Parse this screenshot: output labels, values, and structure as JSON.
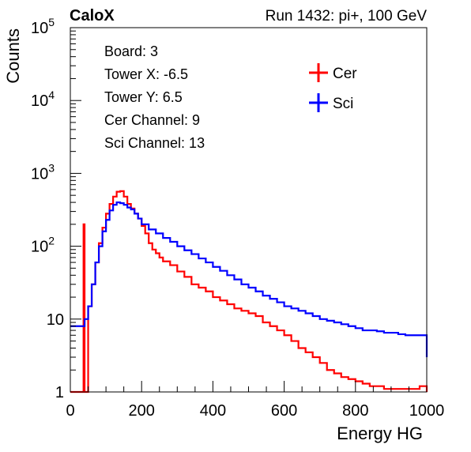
{
  "header": {
    "brand": "CaloX",
    "run_info": "Run 1432: pi+, 100 GeV"
  },
  "info_box": {
    "lines": [
      "Board: 3",
      "Tower X: -6.5",
      "Tower Y: 6.5",
      "Cer Channel: 9",
      "Sci Channel: 13"
    ]
  },
  "chart_data": {
    "type": "line",
    "xlabel": "Energy HG",
    "ylabel": "Counts",
    "xlim": [
      0,
      1000
    ],
    "ylim": [
      1,
      100000
    ],
    "yscale": "log",
    "xticks": [
      0,
      200,
      400,
      600,
      800,
      1000
    ],
    "xtick_labels": [
      "0",
      "200",
      "400",
      "600",
      "800",
      "1000"
    ],
    "yticks": [
      1,
      10,
      100,
      1000,
      10000,
      100000
    ],
    "ytick_labels": [
      {
        "base": "1",
        "exp": ""
      },
      {
        "base": "10",
        "exp": ""
      },
      {
        "base": "10",
        "exp": "2"
      },
      {
        "base": "10",
        "exp": "3"
      },
      {
        "base": "10",
        "exp": "4"
      },
      {
        "base": "10",
        "exp": "5"
      }
    ],
    "legend_position": "top-right",
    "series": [
      {
        "name": "Cer",
        "color": "#ff0000",
        "points": [
          [
            0,
            1
          ],
          [
            35,
            1
          ],
          [
            37,
            200
          ],
          [
            40,
            1
          ],
          [
            45,
            1
          ],
          [
            50,
            15
          ],
          [
            60,
            30
          ],
          [
            70,
            60
          ],
          [
            80,
            110
          ],
          [
            90,
            180
          ],
          [
            100,
            280
          ],
          [
            110,
            380
          ],
          [
            120,
            480
          ],
          [
            130,
            560
          ],
          [
            140,
            570
          ],
          [
            150,
            480
          ],
          [
            160,
            380
          ],
          [
            170,
            330
          ],
          [
            180,
            280
          ],
          [
            190,
            240
          ],
          [
            200,
            190
          ],
          [
            210,
            150
          ],
          [
            220,
            110
          ],
          [
            230,
            90
          ],
          [
            240,
            80
          ],
          [
            250,
            70
          ],
          [
            260,
            62
          ],
          [
            280,
            55
          ],
          [
            300,
            45
          ],
          [
            320,
            38
          ],
          [
            340,
            30
          ],
          [
            360,
            27
          ],
          [
            380,
            24
          ],
          [
            400,
            20
          ],
          [
            420,
            18
          ],
          [
            440,
            16
          ],
          [
            460,
            14
          ],
          [
            480,
            13
          ],
          [
            500,
            12
          ],
          [
            520,
            11
          ],
          [
            540,
            9
          ],
          [
            560,
            8
          ],
          [
            580,
            7
          ],
          [
            600,
            6
          ],
          [
            620,
            5
          ],
          [
            640,
            4
          ],
          [
            660,
            3.5
          ],
          [
            680,
            3
          ],
          [
            700,
            2.5
          ],
          [
            720,
            2
          ],
          [
            740,
            1.8
          ],
          [
            760,
            1.6
          ],
          [
            780,
            1.5
          ],
          [
            800,
            1.4
          ],
          [
            820,
            1.3
          ],
          [
            840,
            1.2
          ],
          [
            860,
            1.2
          ],
          [
            880,
            1.1
          ],
          [
            900,
            1.1
          ],
          [
            920,
            1.1
          ],
          [
            940,
            1.1
          ],
          [
            960,
            1.1
          ],
          [
            980,
            1.2
          ],
          [
            1000,
            1
          ]
        ]
      },
      {
        "name": "Sci",
        "color": "#0000ff",
        "points": [
          [
            0,
            8
          ],
          [
            40,
            10
          ],
          [
            50,
            15
          ],
          [
            60,
            30
          ],
          [
            70,
            60
          ],
          [
            80,
            100
          ],
          [
            90,
            160
          ],
          [
            100,
            230
          ],
          [
            110,
            310
          ],
          [
            120,
            370
          ],
          [
            130,
            400
          ],
          [
            140,
            390
          ],
          [
            150,
            370
          ],
          [
            160,
            340
          ],
          [
            170,
            320
          ],
          [
            180,
            280
          ],
          [
            190,
            240
          ],
          [
            200,
            200
          ],
          [
            220,
            170
          ],
          [
            240,
            150
          ],
          [
            260,
            130
          ],
          [
            280,
            115
          ],
          [
            300,
            100
          ],
          [
            320,
            88
          ],
          [
            340,
            78
          ],
          [
            360,
            68
          ],
          [
            380,
            60
          ],
          [
            400,
            52
          ],
          [
            420,
            46
          ],
          [
            440,
            40
          ],
          [
            460,
            35
          ],
          [
            480,
            30
          ],
          [
            500,
            27
          ],
          [
            520,
            24
          ],
          [
            540,
            21
          ],
          [
            560,
            19
          ],
          [
            580,
            17
          ],
          [
            600,
            15
          ],
          [
            620,
            14
          ],
          [
            640,
            13
          ],
          [
            660,
            12
          ],
          [
            680,
            11
          ],
          [
            700,
            10
          ],
          [
            720,
            9.5
          ],
          [
            740,
            9
          ],
          [
            760,
            8.5
          ],
          [
            780,
            8
          ],
          [
            800,
            7.5
          ],
          [
            820,
            7
          ],
          [
            840,
            7
          ],
          [
            860,
            6.8
          ],
          [
            880,
            6.5
          ],
          [
            900,
            6.5
          ],
          [
            920,
            6.2
          ],
          [
            940,
            6
          ],
          [
            960,
            6
          ],
          [
            980,
            6
          ],
          [
            1000,
            3
          ]
        ]
      }
    ]
  }
}
